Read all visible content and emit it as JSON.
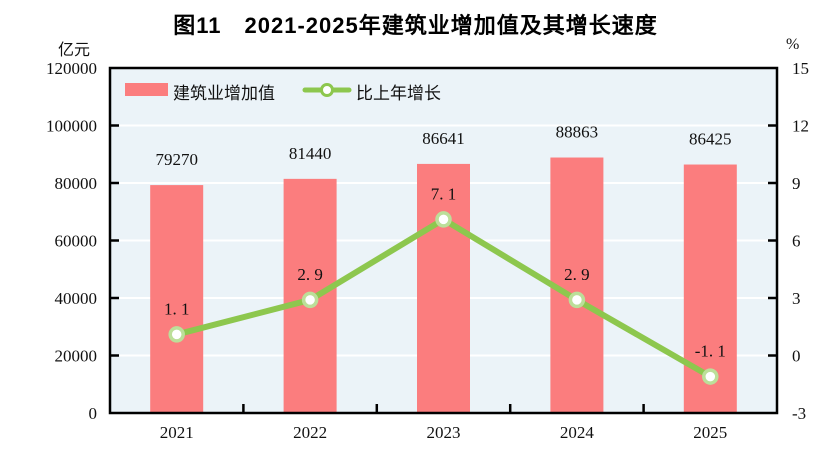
{
  "chart_data": {
    "type": "bar",
    "combo_note": "bar series on left axis + line series on right axis",
    "title": "图11　2021-2025年建筑业增加值及其增长速度",
    "categories": [
      "2021",
      "2022",
      "2023",
      "2024",
      "2025"
    ],
    "series": [
      {
        "name": "建筑业增加值",
        "type": "bar",
        "axis": "left",
        "color": "#FB7D7E",
        "values": [
          79270,
          81440,
          86641,
          88863,
          86425
        ],
        "labels": [
          "79270",
          "81440",
          "86641",
          "88863",
          "86425"
        ]
      },
      {
        "name": "比上年增长",
        "type": "line",
        "axis": "right",
        "color": "#8DC74E",
        "marker_ring": "#BCDF99",
        "marker_fill": "#FFFFFF",
        "values": [
          1.1,
          2.9,
          7.1,
          2.9,
          -1.1
        ],
        "labels": [
          "1. 1",
          "2. 9",
          "7. 1",
          "2. 9",
          "-1. 1"
        ]
      }
    ],
    "left_axis": {
      "unit": "亿元",
      "min": 0,
      "max": 120000,
      "step": 20000,
      "tick_labels": [
        "0",
        "20000",
        "40000",
        "60000",
        "80000",
        "100000",
        "120000"
      ]
    },
    "right_axis": {
      "unit": "%",
      "min": -3,
      "max": 15,
      "step": 3,
      "tick_labels": [
        "-3",
        "0",
        "3",
        "6",
        "9",
        "12",
        "15"
      ]
    },
    "grid": true,
    "legend_position": "inside-top-left",
    "colors": {
      "plot_bg": "#EBF3F8",
      "grid": "#FFFFFF",
      "frame": "#000000",
      "text": "#111111"
    }
  }
}
